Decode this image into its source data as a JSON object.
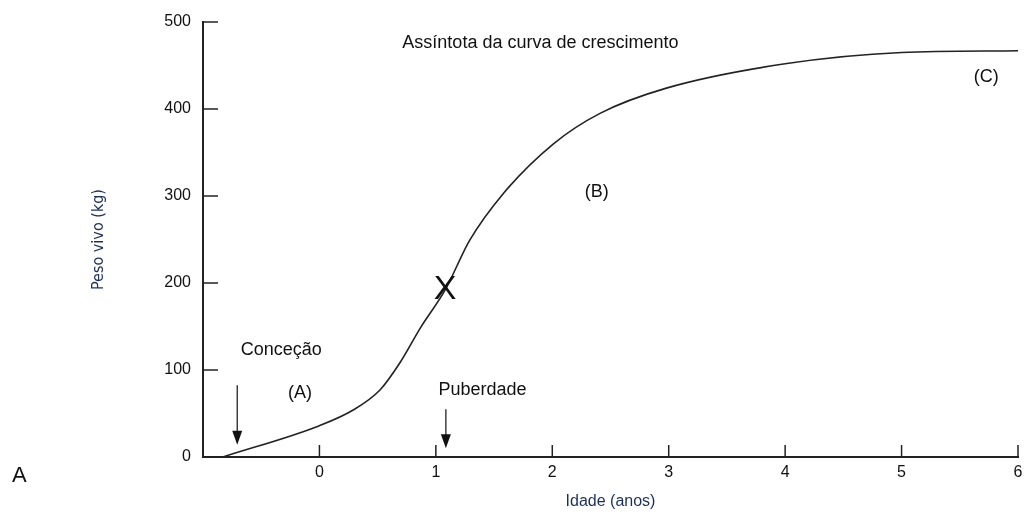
{
  "chart_data": {
    "type": "line",
    "xlabel": "Idade (anos)",
    "ylabel": "Peso vivo (kg)",
    "xlim": [
      -1,
      6
    ],
    "xticks": [
      0,
      1,
      2,
      3,
      4,
      5,
      6
    ],
    "ylim": [
      0,
      500
    ],
    "yticks": [
      0,
      100,
      200,
      300,
      400,
      500
    ],
    "grid": false,
    "legend": false,
    "marker": "none",
    "line_style": "solid",
    "series": [
      {
        "color": "#222222",
        "x": [
          -0.83,
          0,
          0.29,
          0.52,
          0.69,
          0.87,
          1.08,
          1.29,
          1.58,
          2.01,
          2.41,
          2.98,
          4.0,
          5.0,
          6.0
        ],
        "values": [
          0,
          36,
          54,
          77,
          108,
          149,
          192,
          249,
          303,
          360,
          395,
          424,
          452,
          465,
          467
        ]
      }
    ],
    "annotations": [
      "Assíntota da curva de crescimento",
      "(A)",
      "(B)",
      "(C)",
      {
        "text": "X",
        "x": 1.08,
        "y": 192
      },
      "Conceção",
      "Puberdade",
      "A"
    ]
  }
}
